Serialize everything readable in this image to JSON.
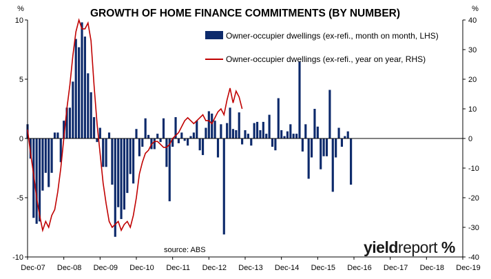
{
  "chart_data": {
    "type": "bar+line",
    "title": "GROWTH OF HOME FINANCE COMMITMENTS (BY NUMBER)",
    "left_axis_unit": "%",
    "right_axis_unit": "%",
    "left_ylim": [
      -10,
      10
    ],
    "right_ylim": [
      -40,
      40
    ],
    "left_ticks": [
      "10",
      "5",
      "0",
      "-5",
      "-10"
    ],
    "right_ticks": [
      "40",
      "30",
      "20",
      "10",
      "0",
      "-10",
      "-20",
      "-30",
      "-40"
    ],
    "x_tick_labels": [
      "Dec-07",
      "Dec-08",
      "Dec-09",
      "Dec-10",
      "Dec-11",
      "Dec-12",
      "Dec-13",
      "Dec-14",
      "Dec-15",
      "Dec-16",
      "Dec-17",
      "Dec-18",
      "Dec-19"
    ],
    "grid": false,
    "legend_position": "top-right",
    "source_note": "source: ABS",
    "logo": {
      "bold": "yield",
      "normal": "report",
      "symbol": "%"
    },
    "series": [
      {
        "name": "Owner-occupier dwellings (ex-refi., month on month, LHS)",
        "type": "bar",
        "axis": "left",
        "color": "#0d2a6b",
        "values": [
          1.2,
          -1.7,
          -6.7,
          -7.2,
          -7.0,
          -4.4,
          -2.9,
          -4.1,
          -2.9,
          0.5,
          0.5,
          -2.0,
          1.5,
          2.6,
          2.6,
          4.8,
          8.4,
          7.7,
          9.8,
          8.6,
          5.5,
          3.9,
          1.8,
          -0.3,
          0.9,
          -2.4,
          -2.4,
          0.5,
          -3.9,
          -8.3,
          -5.8,
          -6.8,
          -6.0,
          -4.6,
          -3.0,
          -3.8,
          0.8,
          -1.5,
          -0.7,
          1.7,
          0.3,
          -0.9,
          -0.9,
          0.4,
          -0.3,
          1.7,
          -2.4,
          -5.3,
          -0.7,
          1.8,
          -0.4,
          0.5,
          -0.2,
          -0.6,
          0.2,
          0.5,
          1.5,
          -1.0,
          -1.4,
          0.9,
          2.3,
          2.1,
          1.5,
          -1.6,
          1.2,
          -8.1,
          1.3,
          2.6,
          0.8,
          0.7,
          2.2,
          -0.5,
          0.7,
          0.4,
          -0.6,
          1.3,
          1.4,
          0.7,
          1.4,
          0.4,
          2.0,
          -0.7,
          -1.0,
          3.4,
          0.7,
          0.2,
          0.6,
          1.2,
          0.4,
          0.4,
          6.5,
          -1.1,
          1.2,
          -3.4,
          -1.6,
          2.5,
          1.0,
          -2.6,
          -1.5,
          -1.5,
          4.1,
          -4.5,
          -1.6,
          0.9,
          -0.7,
          0.2,
          0.6,
          -3.9
        ],
        "note": "monthly values Dec-07 to Dec-19 (partial reading; estimated from bars)"
      },
      {
        "name": "Owner-occupier dwellings (ex-refi., year on year, RHS)",
        "type": "line",
        "axis": "right",
        "color": "#c00000",
        "values": [
          3,
          -5,
          -12,
          -20,
          -26,
          -31,
          -28,
          -30,
          -26,
          -24,
          -18,
          -10,
          0,
          10,
          18,
          28,
          36,
          40,
          37,
          37,
          39,
          33,
          18,
          5,
          -5,
          -15,
          -22,
          -28,
          -30,
          -29,
          -28,
          -31,
          -29,
          -28,
          -30,
          -26,
          -20,
          -12,
          -8,
          -5,
          -4,
          -2,
          -1,
          -1,
          -2,
          -3,
          -3,
          -2,
          0,
          1,
          2,
          4,
          6,
          7,
          6,
          5,
          6,
          7,
          8,
          6,
          6,
          5,
          7,
          9,
          10,
          8,
          13,
          17,
          12,
          16,
          14,
          10
        ],
        "note": "first 72 monthly points Dec-07 onward (estimated)"
      }
    ]
  }
}
